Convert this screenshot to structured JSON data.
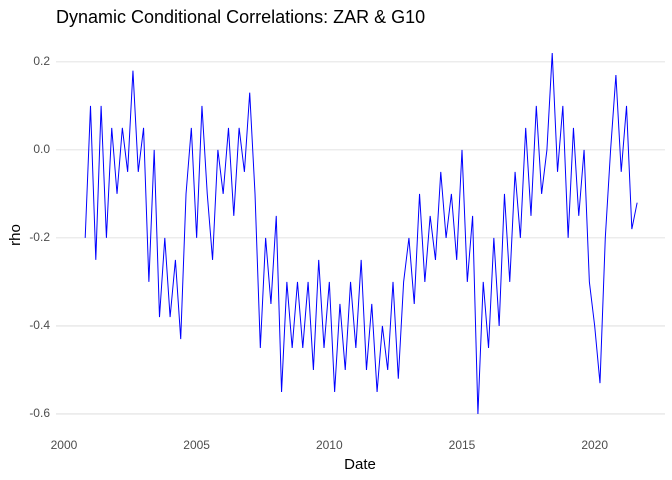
{
  "chart_data": {
    "type": "line",
    "title": "Dynamic Conditional Correlations: ZAR & G10",
    "x_label": "Date",
    "y_label": "rho",
    "x": [
      2000.8,
      2001.0,
      2001.2,
      2001.4,
      2001.6,
      2001.8,
      2002.0,
      2002.2,
      2002.4,
      2002.6,
      2002.8,
      2003.0,
      2003.2,
      2003.4,
      2003.6,
      2003.8,
      2004.0,
      2004.2,
      2004.4,
      2004.6,
      2004.8,
      2005.0,
      2005.2,
      2005.4,
      2005.6,
      2005.8,
      2006.0,
      2006.2,
      2006.4,
      2006.6,
      2006.8,
      2007.0,
      2007.2,
      2007.4,
      2007.6,
      2007.8,
      2008.0,
      2008.2,
      2008.4,
      2008.6,
      2008.8,
      2009.0,
      2009.2,
      2009.4,
      2009.6,
      2009.8,
      2010.0,
      2010.2,
      2010.4,
      2010.6,
      2010.8,
      2011.0,
      2011.2,
      2011.4,
      2011.6,
      2011.8,
      2012.0,
      2012.2,
      2012.4,
      2012.6,
      2012.8,
      2013.0,
      2013.2,
      2013.4,
      2013.6,
      2013.8,
      2014.0,
      2014.2,
      2014.4,
      2014.6,
      2014.8,
      2015.0,
      2015.2,
      2015.4,
      2015.6,
      2015.8,
      2016.0,
      2016.2,
      2016.4,
      2016.6,
      2016.8,
      2017.0,
      2017.2,
      2017.4,
      2017.6,
      2017.8,
      2018.0,
      2018.2,
      2018.4,
      2018.6,
      2018.8,
      2019.0,
      2019.2,
      2019.4,
      2019.6,
      2019.8,
      2020.0,
      2020.2,
      2020.4,
      2020.6,
      2020.8,
      2021.0,
      2021.2,
      2021.4,
      2021.6
    ],
    "series": [
      {
        "color": "#0000ff",
        "values": [
          -0.2,
          0.1,
          -0.25,
          0.1,
          -0.2,
          0.05,
          -0.1,
          0.05,
          -0.05,
          0.18,
          -0.05,
          0.05,
          -0.3,
          0.0,
          -0.38,
          -0.2,
          -0.38,
          -0.25,
          -0.43,
          -0.1,
          0.05,
          -0.2,
          0.1,
          -0.1,
          -0.25,
          0.0,
          -0.1,
          0.05,
          -0.15,
          0.05,
          -0.05,
          0.13,
          -0.1,
          -0.45,
          -0.2,
          -0.35,
          -0.15,
          -0.55,
          -0.3,
          -0.45,
          -0.3,
          -0.45,
          -0.3,
          -0.5,
          -0.25,
          -0.45,
          -0.3,
          -0.55,
          -0.35,
          -0.5,
          -0.3,
          -0.45,
          -0.25,
          -0.5,
          -0.35,
          -0.55,
          -0.4,
          -0.5,
          -0.3,
          -0.52,
          -0.3,
          -0.2,
          -0.35,
          -0.1,
          -0.3,
          -0.15,
          -0.25,
          -0.05,
          -0.2,
          -0.1,
          -0.25,
          0.0,
          -0.3,
          -0.15,
          -0.6,
          -0.3,
          -0.45,
          -0.2,
          -0.4,
          -0.1,
          -0.3,
          -0.05,
          -0.2,
          0.05,
          -0.15,
          0.1,
          -0.1,
          0.0,
          0.22,
          -0.05,
          0.1,
          -0.2,
          0.05,
          -0.15,
          0.0,
          -0.3,
          -0.4,
          -0.53,
          -0.2,
          0.0,
          0.17,
          -0.05,
          0.1,
          -0.18,
          -0.12
        ]
      }
    ],
    "xlim": [
      1999.7,
      2022.65
    ],
    "xticks": [
      2000,
      2005,
      2010,
      2015,
      2020
    ],
    "ylim": [
      -0.641,
      0.261
    ],
    "yticks": [
      -0.6,
      -0.4,
      -0.2,
      {
        "value": 0,
        "label": "0.0"
      },
      0.2
    ],
    "grid": true
  }
}
